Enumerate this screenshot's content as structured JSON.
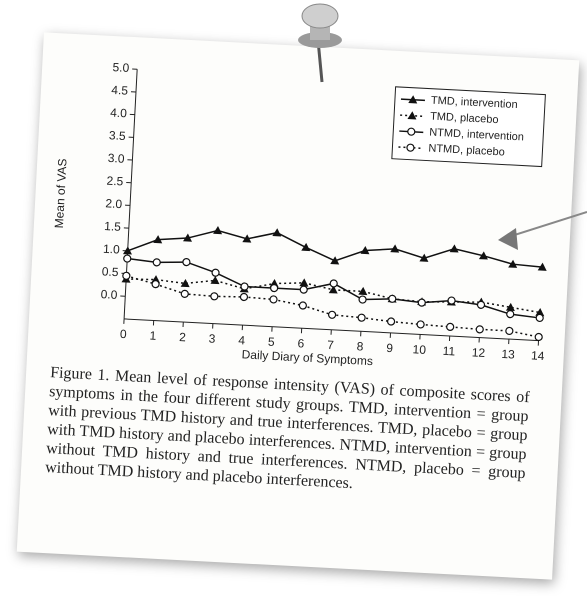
{
  "chart_data": {
    "type": "line",
    "x_label": "Daily Diary of Symptoms",
    "y_label": "Mean of VAS",
    "x": [
      0,
      1,
      2,
      3,
      4,
      5,
      6,
      7,
      8,
      9,
      10,
      11,
      12,
      13,
      14
    ],
    "xlim": [
      0,
      14
    ],
    "xticks": [
      0,
      1,
      2,
      3,
      4,
      5,
      6,
      7,
      8,
      9,
      10,
      11,
      12,
      13,
      14
    ],
    "ylim": [
      -0.5,
      5.0
    ],
    "yticks": [
      {
        "value": 0,
        "label": "0.0"
      },
      0.5,
      {
        "value": 1,
        "label": "1.0"
      },
      1.5,
      {
        "value": 2,
        "label": "2.0"
      },
      2.5,
      {
        "value": 3,
        "label": "3.0"
      },
      3.5,
      {
        "value": 4,
        "label": "4.0"
      },
      4.5,
      {
        "value": 5,
        "label": "5.0"
      }
    ],
    "legend": "upper right",
    "series": [
      {
        "name": "TMD, intervention",
        "color": "#111111",
        "line_style": "solid",
        "marker": "triangle",
        "values": [
          1.0,
          1.28,
          1.35,
          1.55,
          1.4,
          1.57,
          1.28,
          1.02,
          1.28,
          1.35,
          1.18,
          1.42,
          1.3,
          1.15,
          1.12
        ]
      },
      {
        "name": "TMD, placebo",
        "color": "#111111",
        "line_style": "dotted",
        "marker": "triangle",
        "values": [
          0.38,
          0.4,
          0.35,
          0.45,
          0.3,
          0.45,
          0.5,
          0.38,
          0.38,
          0.25,
          0.22,
          0.25,
          0.28,
          0.2,
          0.12
        ]
      },
      {
        "name": "NTMD, intervention",
        "color": "#111111",
        "line_style": "solid",
        "marker": "circle-open",
        "values": [
          0.83,
          0.78,
          0.82,
          0.62,
          0.35,
          0.35,
          0.35,
          0.52,
          0.2,
          0.25,
          0.2,
          0.28,
          0.22,
          0.05,
          0.0
        ]
      },
      {
        "name": "NTMD, placebo",
        "color": "#111111",
        "line_style": "dotted",
        "marker": "circle-open",
        "values": [
          0.45,
          0.3,
          0.12,
          0.1,
          0.12,
          0.1,
          0.0,
          -0.17,
          -0.2,
          -0.25,
          -0.28,
          -0.3,
          -0.32,
          -0.32,
          -0.42
        ]
      }
    ]
  },
  "caption": "Figure 1. Mean level of response intensity (VAS) of composite scores of symptoms in the four different study groups. TMD, intervention = group with previous TMD history and true interferences. TMD, placebo = group with TMD history and placebo interferences. NTMD, intervention = group without TMD history and true interferences. NTMD, placebo = group without TMD history and placebo interferences."
}
